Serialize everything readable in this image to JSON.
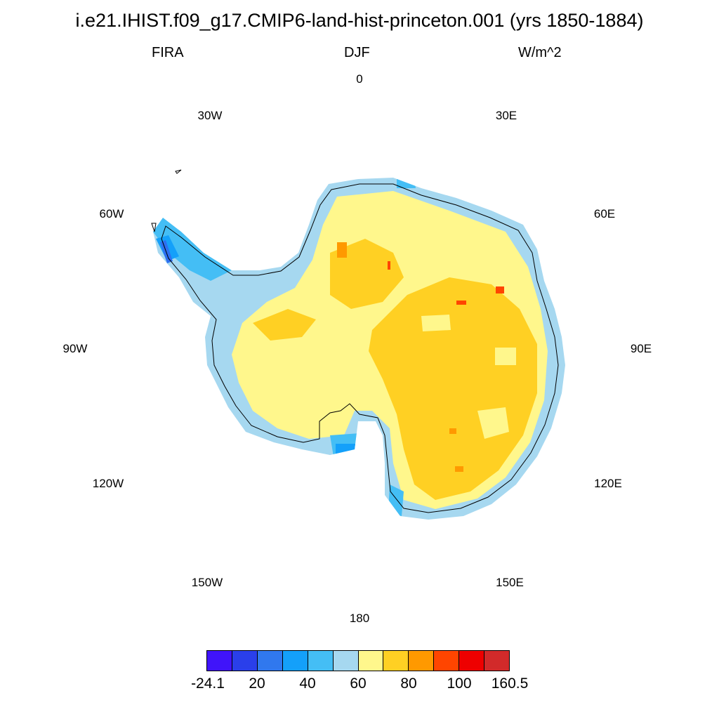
{
  "header": {
    "title": "i.e21.IHIST.f09_g17.CMIP6-land-hist-princeton.001 (yrs 1850-1884)",
    "variable": "FIRA",
    "season": "DJF",
    "units": "W/m^2"
  },
  "map": {
    "projection": "south-polar-stereographic",
    "longitude_labels": {
      "lon_0": "0",
      "lon_30e": "30E",
      "lon_60e": "60E",
      "lon_90e": "90E",
      "lon_120e": "120E",
      "lon_150e": "150E",
      "lon_180": "180",
      "lon_150w": "150W",
      "lon_120w": "120W",
      "lon_90w": "90W",
      "lon_60w": "60W",
      "lon_30w": "30W"
    },
    "field_colors": {
      "coast_band": "#A6D8F0",
      "outer_blue": "#44BEF5",
      "mid_blue": "#14A0FA",
      "deep_blue": "#2D70F0",
      "pale_yellow": "#FFF78C",
      "gold": "#FFD023",
      "orange": "#FF9900",
      "red_orange": "#FF4500",
      "coastline": "#000000"
    }
  },
  "colorbar": {
    "colors": [
      "#4014FA",
      "#2A3FEA",
      "#3078EE",
      "#14A0FA",
      "#44BEF5",
      "#A6D8F0",
      "#FFF78C",
      "#FFD023",
      "#FF9900",
      "#FF4500",
      "#EE0000",
      "#D22A2A"
    ],
    "labels": {
      "min": "-24.1",
      "l20": "20",
      "l40": "40",
      "l60": "60",
      "l80": "80",
      "l100": "100",
      "max": "160.5"
    }
  }
}
